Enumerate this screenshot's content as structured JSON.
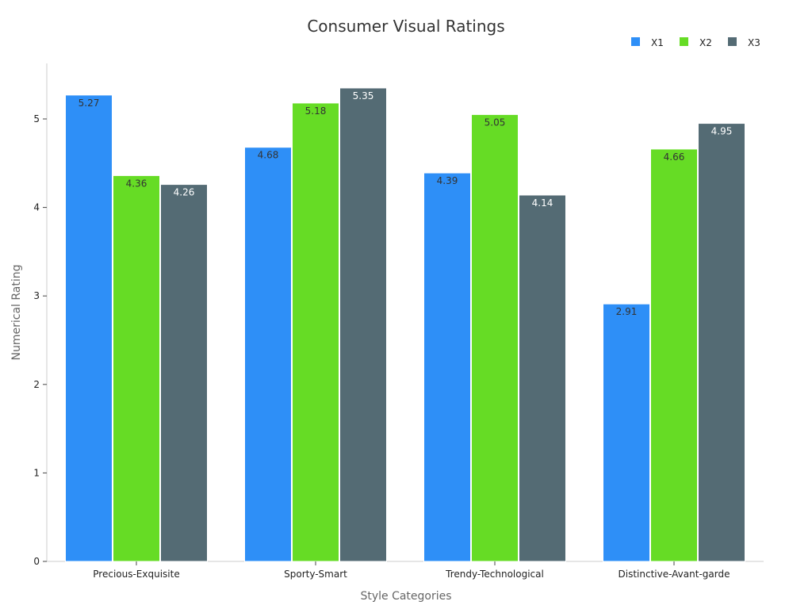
{
  "chart_data": {
    "type": "bar",
    "title": "Consumer Visual Ratings",
    "xlabel": "Style Categories",
    "ylabel": "Numerical Rating",
    "categories": [
      "Precious-Exquisite",
      "Sporty-Smart",
      "Trendy-Technological",
      "Distinctive-Avant-garde"
    ],
    "series": [
      {
        "name": "X1",
        "color": "#2e8ff7",
        "label_color": "#333333",
        "values": [
          5.27,
          4.68,
          4.39,
          2.91
        ]
      },
      {
        "name": "X2",
        "color": "#66dc25",
        "label_color": "#333333",
        "values": [
          4.36,
          5.18,
          5.05,
          4.66
        ]
      },
      {
        "name": "X3",
        "color": "#546b74",
        "label_color": "#ffffff",
        "values": [
          4.26,
          5.35,
          4.14,
          4.95
        ]
      }
    ],
    "ylim": [
      0,
      5.6
    ],
    "yticks": [
      0,
      1,
      2,
      3,
      4,
      5
    ],
    "grid": false,
    "legend_position": "top-right"
  }
}
